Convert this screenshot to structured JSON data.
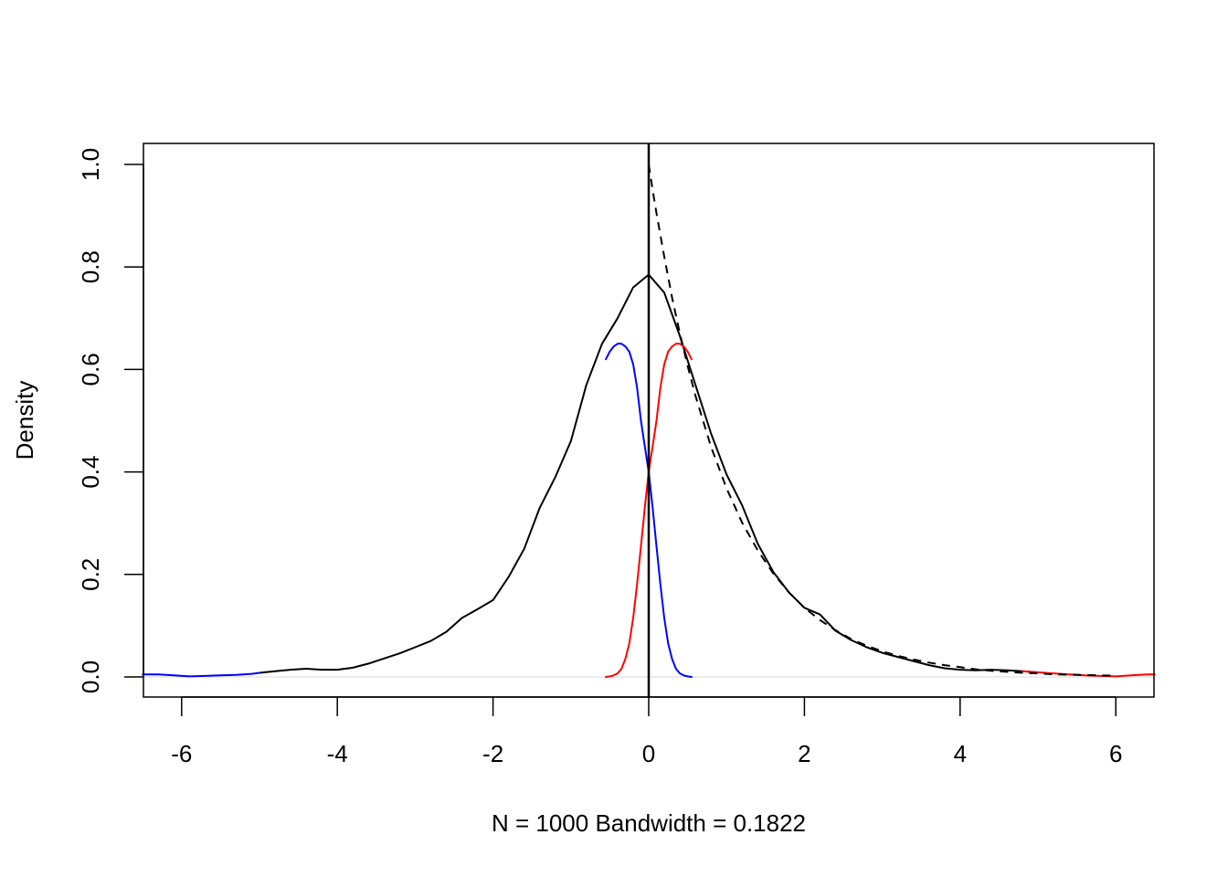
{
  "chart_data": {
    "type": "line",
    "title": "",
    "xlabel": "N = 1000   Bandwidth = 0.1822",
    "ylabel": "Density",
    "xlim": [
      -6.5,
      6.5
    ],
    "ylim": [
      -0.04,
      1.04
    ],
    "xticks": [
      "-6",
      "-4",
      "-2",
      "0",
      "2",
      "4",
      "6"
    ],
    "yticks": [
      "0.0",
      "0.2",
      "0.4",
      "0.6",
      "0.8",
      "1.0"
    ],
    "grid": false,
    "vline_x": 0,
    "zero_line": true,
    "series": [
      {
        "color": "#000000",
        "style": "solid",
        "x": [
          -5.0,
          -4.8,
          -4.6,
          -4.4,
          -4.2,
          -4.0,
          -3.8,
          -3.6,
          -3.4,
          -3.2,
          -3.0,
          -2.8,
          -2.6,
          -2.4,
          -2.2,
          -2.0,
          -1.8,
          -1.6,
          -1.4,
          -1.2,
          -1.0,
          -0.8,
          -0.6,
          -0.4,
          -0.2,
          0.0,
          0.2,
          0.4,
          0.6,
          0.8,
          1.0,
          1.2,
          1.4,
          1.6,
          1.8,
          2.0,
          2.2,
          2.4,
          2.6,
          2.8,
          3.0,
          3.2,
          3.4,
          3.6,
          3.8,
          4.0,
          4.2,
          4.4,
          4.6,
          4.8,
          5.0
        ],
        "y": [
          0.008,
          0.011,
          0.014,
          0.016,
          0.014,
          0.014,
          0.018,
          0.026,
          0.036,
          0.046,
          0.058,
          0.07,
          0.088,
          0.115,
          0.132,
          0.15,
          0.195,
          0.25,
          0.33,
          0.39,
          0.46,
          0.57,
          0.65,
          0.7,
          0.76,
          0.785,
          0.75,
          0.665,
          0.57,
          0.475,
          0.395,
          0.335,
          0.26,
          0.205,
          0.165,
          0.135,
          0.122,
          0.09,
          0.072,
          0.058,
          0.047,
          0.039,
          0.031,
          0.023,
          0.017,
          0.014,
          0.013,
          0.014,
          0.013,
          0.011,
          0.009
        ]
      },
      {
        "color": "#0000ff",
        "style": "solid",
        "x": [
          -6.5,
          -6.3,
          -6.1,
          -5.9,
          -5.7,
          -5.5,
          -5.3,
          -5.1,
          -5.0
        ],
        "y": [
          0.005,
          0.005,
          0.003,
          0.001,
          0.002,
          0.003,
          0.004,
          0.006,
          0.008
        ]
      },
      {
        "color": "#0000ff",
        "style": "solid",
        "x": [
          -0.55,
          -0.5,
          -0.45,
          -0.4,
          -0.35,
          -0.3,
          -0.25,
          -0.2,
          -0.15,
          -0.1,
          -0.05,
          0.0,
          0.05,
          0.1,
          0.15,
          0.2,
          0.25,
          0.3,
          0.35,
          0.4,
          0.45,
          0.5,
          0.55
        ],
        "y": [
          0.62,
          0.635,
          0.645,
          0.65,
          0.65,
          0.645,
          0.635,
          0.61,
          0.565,
          0.5,
          0.45,
          0.4,
          0.33,
          0.255,
          0.18,
          0.115,
          0.065,
          0.035,
          0.016,
          0.007,
          0.003,
          0.001,
          0.0
        ]
      },
      {
        "color": "#ff0000",
        "style": "solid",
        "x": [
          -0.55,
          -0.5,
          -0.45,
          -0.4,
          -0.35,
          -0.3,
          -0.25,
          -0.2,
          -0.15,
          -0.1,
          -0.05,
          0.0,
          0.05,
          0.1,
          0.15,
          0.2,
          0.25,
          0.3,
          0.35,
          0.4,
          0.45,
          0.5,
          0.55
        ],
        "y": [
          0.0,
          0.001,
          0.003,
          0.007,
          0.016,
          0.035,
          0.065,
          0.115,
          0.18,
          0.255,
          0.33,
          0.4,
          0.45,
          0.5,
          0.565,
          0.61,
          0.635,
          0.645,
          0.65,
          0.65,
          0.645,
          0.635,
          0.62
        ]
      },
      {
        "color": "#ff0000",
        "style": "solid",
        "x": [
          4.8,
          5.0,
          5.2,
          5.4,
          5.6,
          5.8,
          6.0,
          6.2,
          6.4,
          6.5
        ],
        "y": [
          0.011,
          0.009,
          0.007,
          0.005,
          0.003,
          0.002,
          0.001,
          0.003,
          0.005,
          0.005
        ]
      },
      {
        "color": "#000000",
        "style": "dashed",
        "x": [
          0.0,
          0.05,
          0.1,
          0.2,
          0.3,
          0.4,
          0.5,
          0.6,
          0.8,
          1.0,
          1.2,
          1.4,
          1.6,
          1.8,
          2.0,
          2.2,
          2.4,
          2.6,
          2.8,
          3.0,
          3.2,
          3.4,
          3.6,
          3.8,
          4.0,
          4.2,
          4.4,
          4.6,
          4.8,
          5.0,
          5.2,
          5.4,
          5.6,
          5.8,
          6.0
        ],
        "y": [
          1.0,
          0.95,
          0.905,
          0.82,
          0.74,
          0.67,
          0.607,
          0.549,
          0.449,
          0.368,
          0.301,
          0.247,
          0.202,
          0.165,
          0.135,
          0.111,
          0.091,
          0.074,
          0.061,
          0.05,
          0.041,
          0.034,
          0.028,
          0.023,
          0.019,
          0.015,
          0.012,
          0.01,
          0.008,
          0.007,
          0.005,
          0.0045,
          0.0037,
          0.003,
          0.0025
        ]
      }
    ]
  }
}
